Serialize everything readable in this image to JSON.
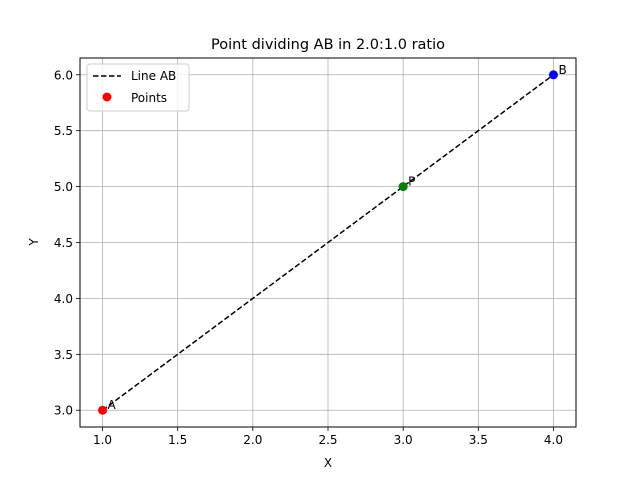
{
  "chart_data": {
    "type": "scatter",
    "title": "Point dividing AB in 2.0:1.0 ratio",
    "xlabel": "X",
    "ylabel": "Y",
    "xlim": [
      0.85,
      4.15
    ],
    "ylim": [
      2.85,
      6.15
    ],
    "xticks": [
      "1.0",
      "1.5",
      "2.0",
      "2.5",
      "3.0",
      "3.5",
      "4.0"
    ],
    "yticks": [
      "3.0",
      "3.5",
      "4.0",
      "4.5",
      "5.0",
      "5.5",
      "6.0"
    ],
    "grid": true,
    "legend_position": "upper-left",
    "line": {
      "name": "Line AB",
      "x": [
        1.0,
        4.0
      ],
      "y": [
        3.0,
        6.0
      ],
      "style": "dashed",
      "color": "#000000"
    },
    "points_legend": "Points",
    "points_legend_color": "#ff0000",
    "points": [
      {
        "label": "A",
        "x": 1.0,
        "y": 3.0,
        "color": "#ff0000"
      },
      {
        "label": "B",
        "x": 4.0,
        "y": 6.0,
        "color": "#0000ff"
      },
      {
        "label": "P",
        "x": 3.0,
        "y": 5.0,
        "color": "#008000"
      }
    ]
  }
}
